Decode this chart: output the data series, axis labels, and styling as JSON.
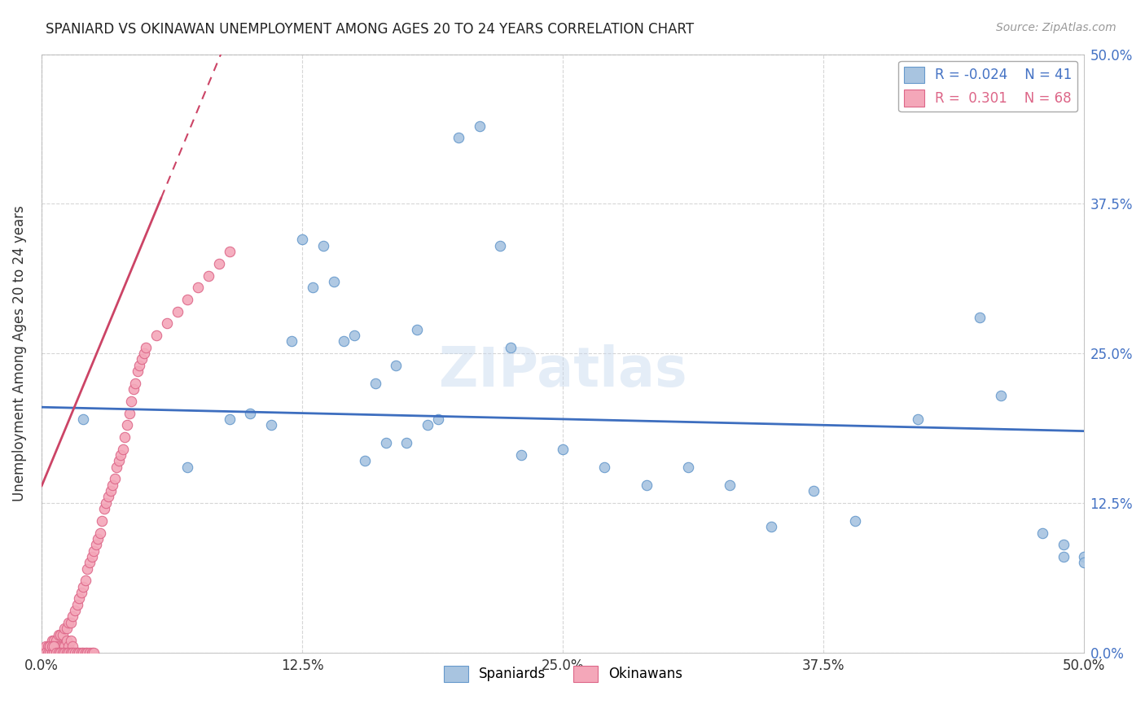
{
  "title": "SPANIARD VS OKINAWAN UNEMPLOYMENT AMONG AGES 20 TO 24 YEARS CORRELATION CHART",
  "source": "Source: ZipAtlas.com",
  "ylabel": "Unemployment Among Ages 20 to 24 years",
  "xlim": [
    0.0,
    0.5
  ],
  "ylim": [
    0.0,
    0.5
  ],
  "xtick_vals": [
    0.0,
    0.125,
    0.25,
    0.375,
    0.5
  ],
  "ytick_vals": [
    0.0,
    0.125,
    0.25,
    0.375,
    0.5
  ],
  "spaniards_x": [
    0.02,
    0.07,
    0.09,
    0.1,
    0.11,
    0.12,
    0.125,
    0.13,
    0.135,
    0.14,
    0.145,
    0.15,
    0.155,
    0.16,
    0.165,
    0.17,
    0.175,
    0.18,
    0.185,
    0.19,
    0.2,
    0.21,
    0.22,
    0.225,
    0.23,
    0.25,
    0.27,
    0.29,
    0.31,
    0.33,
    0.35,
    0.37,
    0.39,
    0.42,
    0.45,
    0.46,
    0.48,
    0.49,
    0.49,
    0.5,
    0.5
  ],
  "spaniards_y": [
    0.195,
    0.155,
    0.195,
    0.2,
    0.19,
    0.26,
    0.345,
    0.305,
    0.34,
    0.31,
    0.26,
    0.265,
    0.16,
    0.225,
    0.175,
    0.24,
    0.175,
    0.27,
    0.19,
    0.195,
    0.43,
    0.44,
    0.34,
    0.255,
    0.165,
    0.17,
    0.155,
    0.14,
    0.155,
    0.14,
    0.105,
    0.135,
    0.11,
    0.195,
    0.28,
    0.215,
    0.1,
    0.09,
    0.08,
    0.08,
    0.075
  ],
  "okinawans_x": [
    0.002,
    0.003,
    0.004,
    0.005,
    0.005,
    0.006,
    0.006,
    0.007,
    0.007,
    0.008,
    0.008,
    0.009,
    0.009,
    0.01,
    0.01,
    0.011,
    0.011,
    0.012,
    0.012,
    0.013,
    0.013,
    0.014,
    0.014,
    0.015,
    0.015,
    0.016,
    0.017,
    0.018,
    0.019,
    0.02,
    0.021,
    0.022,
    0.023,
    0.024,
    0.025,
    0.026,
    0.027,
    0.028,
    0.029,
    0.03,
    0.031,
    0.032,
    0.033,
    0.034,
    0.035,
    0.036,
    0.037,
    0.038,
    0.039,
    0.04,
    0.041,
    0.042,
    0.043,
    0.044,
    0.045,
    0.046,
    0.047,
    0.048,
    0.049,
    0.05,
    0.055,
    0.06,
    0.065,
    0.07,
    0.075,
    0.08,
    0.085,
    0.09
  ],
  "okinawans_y": [
    0.005,
    0.005,
    0.005,
    0.01,
    0.005,
    0.01,
    0.005,
    0.01,
    0.005,
    0.015,
    0.005,
    0.015,
    0.005,
    0.015,
    0.005,
    0.02,
    0.005,
    0.02,
    0.01,
    0.025,
    0.005,
    0.025,
    0.01,
    0.03,
    0.005,
    0.035,
    0.04,
    0.045,
    0.05,
    0.055,
    0.06,
    0.07,
    0.075,
    0.08,
    0.085,
    0.09,
    0.095,
    0.1,
    0.11,
    0.12,
    0.125,
    0.13,
    0.135,
    0.14,
    0.145,
    0.155,
    0.16,
    0.165,
    0.17,
    0.18,
    0.19,
    0.2,
    0.21,
    0.22,
    0.225,
    0.235,
    0.24,
    0.245,
    0.25,
    0.255,
    0.265,
    0.275,
    0.285,
    0.295,
    0.305,
    0.315,
    0.325,
    0.335
  ],
  "okinawans_extra_x": [
    0.002,
    0.003,
    0.004,
    0.004,
    0.005,
    0.005,
    0.006,
    0.006,
    0.007,
    0.008,
    0.009,
    0.01,
    0.011,
    0.012,
    0.013,
    0.014,
    0.015,
    0.016,
    0.017,
    0.018,
    0.019,
    0.02,
    0.021,
    0.022,
    0.023,
    0.024,
    0.025
  ],
  "okinawans_extra_y": [
    0.0,
    0.0,
    0.0,
    0.005,
    0.0,
    0.005,
    0.0,
    0.005,
    0.0,
    0.0,
    0.0,
    0.0,
    0.0,
    0.0,
    0.0,
    0.0,
    0.0,
    0.0,
    0.0,
    0.0,
    0.0,
    0.0,
    0.0,
    0.0,
    0.0,
    0.0,
    0.0
  ],
  "spaniards_color": "#a8c4e0",
  "okinawans_color": "#f4a7b9",
  "spaniards_edge": "#6699cc",
  "okinawans_edge": "#dd6688",
  "trend_blue_color": "#3d6ebf",
  "trend_pink_color": "#cc4466",
  "r_spaniards": "-0.024",
  "n_spaniards": "41",
  "r_okinawans": "0.301",
  "n_okinawans": "68",
  "watermark": "ZIPatlas",
  "background_color": "#ffffff",
  "grid_color": "#cccccc",
  "right_axis_color": "#4472c4",
  "marker_size": 80,
  "blue_trend_y0": 0.205,
  "blue_trend_y1": 0.185,
  "pink_trend_x0": 0.005,
  "pink_trend_y0": 0.16,
  "pink_trend_slope": 4.2
}
